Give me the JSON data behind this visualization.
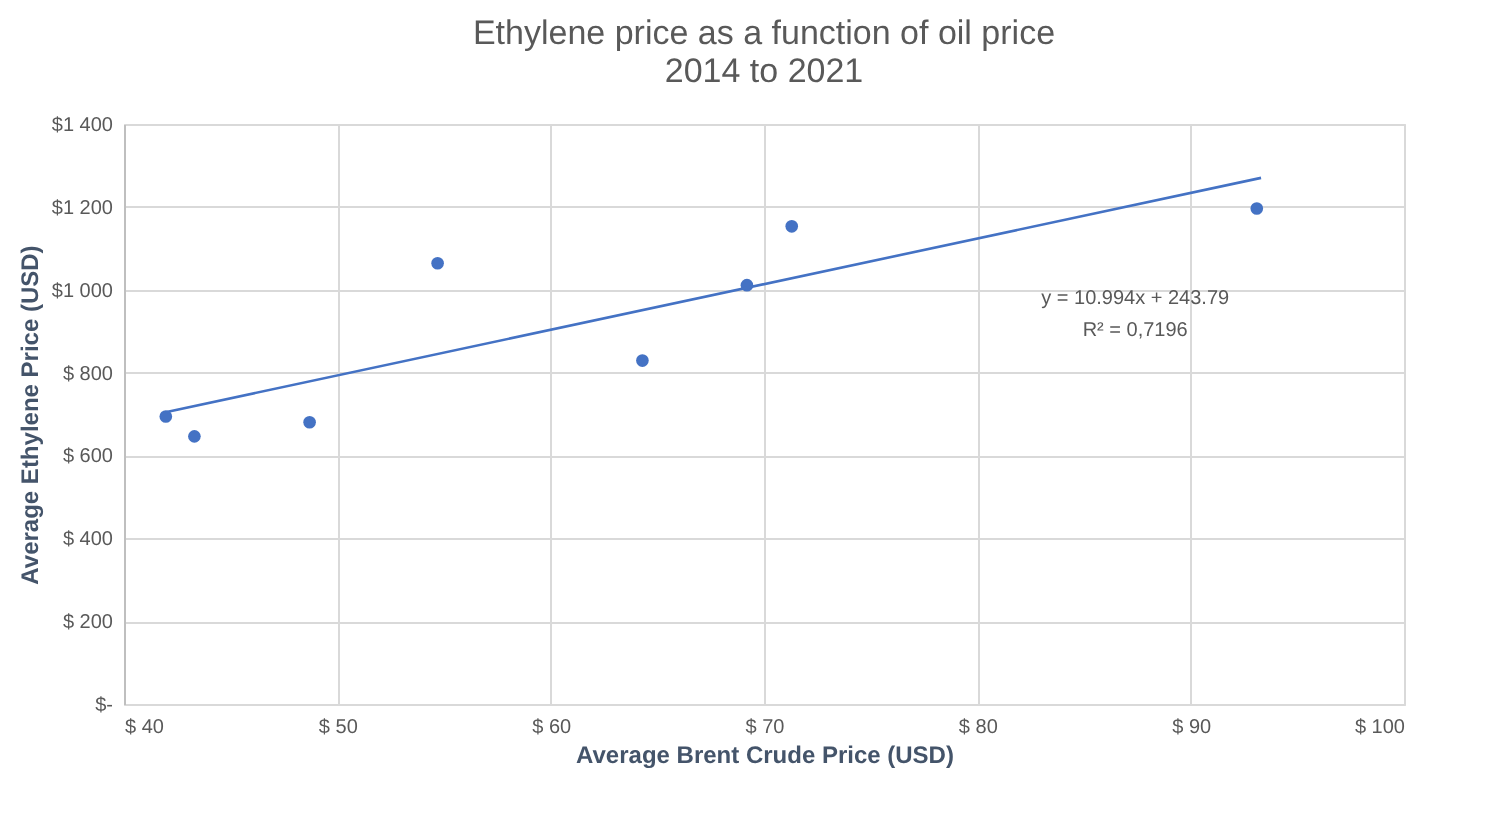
{
  "chart_data": {
    "type": "scatter",
    "title": "Ethylene price as a function of oil price\n2014 to 2021",
    "xlabel": "Average Brent Crude Price (USD)",
    "ylabel": "Average Ethylene Price (USD)",
    "series": [
      {
        "color": "#4472c4",
        "x": [
          41.96,
          43.3,
          48.7,
          54.7,
          64.3,
          69.2,
          71.3,
          93.1
        ],
        "values": [
          694,
          646,
          680,
          1064,
          829,
          1011,
          1153,
          1196
        ]
      },
      {
        "type": "line",
        "marker": "none",
        "color": "#4472c4",
        "x": [
          42,
          93.3
        ],
        "values": [
          705,
          1270
        ]
      }
    ],
    "marker": "circle",
    "grid": true,
    "xlim": [
      40,
      100
    ],
    "ylim": [
      0,
      1400
    ],
    "xticks": [
      {
        "value": 40,
        "label": "$ 40"
      },
      {
        "value": 50,
        "label": "$ 50"
      },
      {
        "value": 60,
        "label": "$ 60"
      },
      {
        "value": 70,
        "label": "$ 70"
      },
      {
        "value": 80,
        "label": "$ 80"
      },
      {
        "value": 90,
        "label": "$ 90"
      },
      {
        "value": 100,
        "label": "$ 100"
      }
    ],
    "yticks": [
      {
        "value": 0,
        "label": "$-"
      },
      {
        "value": 200,
        "label": "$ 200"
      },
      {
        "value": 400,
        "label": "$ 400"
      },
      {
        "value": 600,
        "label": "$ 600"
      },
      {
        "value": 800,
        "label": "$ 800"
      },
      {
        "value": 1000,
        "label": "$1 000"
      },
      {
        "value": 1200,
        "label": "$1 200"
      },
      {
        "value": 1400,
        "label": "$1 400"
      }
    ],
    "annotations": [
      "y = 10.994x + 243.79",
      "R² = 0,7196"
    ]
  }
}
